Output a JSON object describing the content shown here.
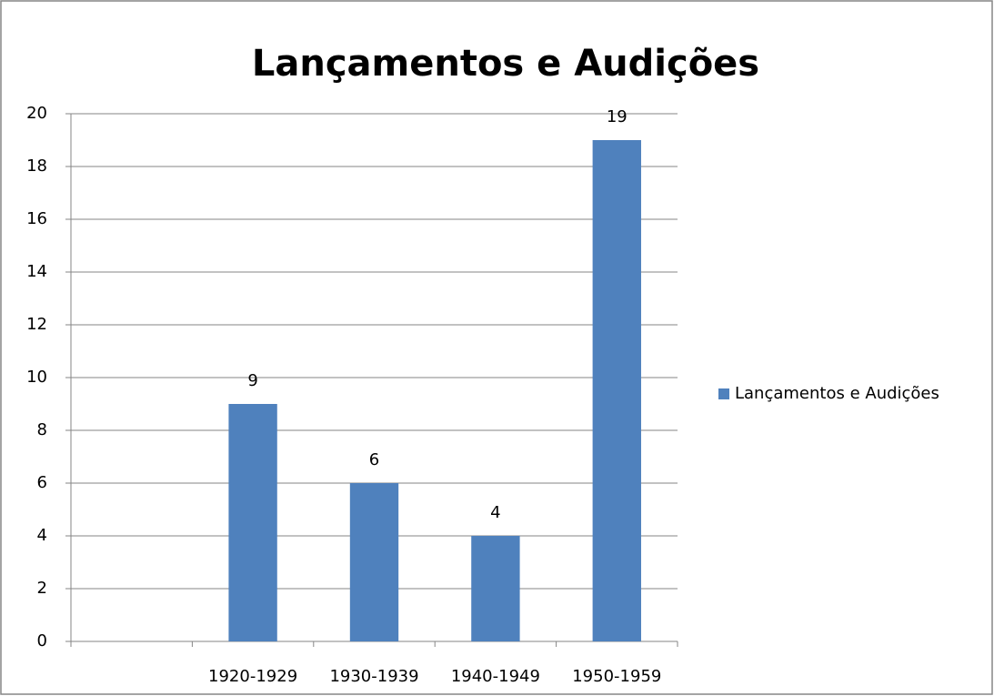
{
  "chart_data": {
    "type": "bar",
    "title": "Lançamentos e Audições",
    "categories": [
      null,
      "1920-1929",
      "1930-1939",
      "1940-1949",
      "1950-1959"
    ],
    "series": [
      {
        "name": "Lançamentos e Audições",
        "color": "#4f81bd",
        "values": [
          null,
          9,
          6,
          4,
          19
        ]
      }
    ],
    "ylim": [
      0,
      20
    ],
    "yticks": [
      0,
      2,
      4,
      6,
      8,
      10,
      12,
      14,
      16,
      18,
      20
    ],
    "grid": true,
    "legend": "right"
  }
}
